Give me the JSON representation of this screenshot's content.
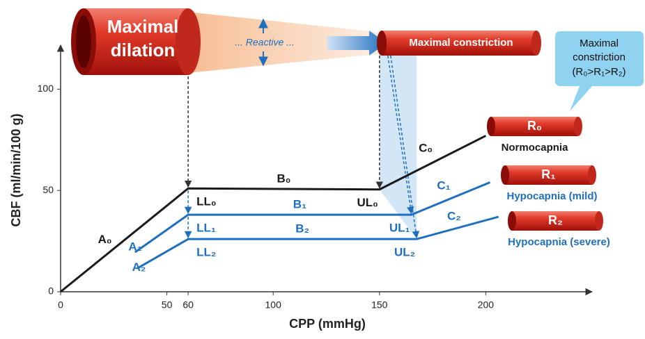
{
  "chart_data": {
    "type": "line",
    "x_label": "CPP (mmHg)",
    "y_label": "CBF (ml/min/100 g)",
    "xlim": [
      0,
      250
    ],
    "ylim": [
      0,
      120
    ],
    "xticks": [
      0,
      50,
      60,
      100,
      150,
      200
    ],
    "yticks": [
      0,
      50,
      100
    ],
    "series": [
      {
        "name": "Normocapnia",
        "tag": "R₀",
        "color": "#1a1a1a",
        "x": [
          0,
          60,
          150,
          200
        ],
        "values": [
          0,
          51,
          50.5,
          77
        ],
        "segment_labels": [
          "A₀",
          "B₀",
          "C₀"
        ],
        "limit_labels": [
          "LL₀",
          "UL₀"
        ]
      },
      {
        "name": "Hypocapnia (mild)",
        "tag": "R₁",
        "color": "#1f6fbf",
        "x": [
          35,
          60,
          165,
          202
        ],
        "values": [
          19.5,
          38,
          38,
          54
        ],
        "segment_labels": [
          "A₁",
          "B₁",
          "C₁"
        ],
        "limit_labels": [
          "LL₁",
          "UL₁"
        ]
      },
      {
        "name": "Hypocapnia (severe)",
        "tag": "R₂",
        "color": "#1f6fbf",
        "x": [
          36,
          60,
          167.5,
          206
        ],
        "values": [
          11.5,
          26,
          26,
          37
        ],
        "segment_labels": [
          "A₂",
          "B₂",
          "C₂"
        ],
        "limit_labels": [
          "LL₂",
          "UL₂"
        ]
      }
    ],
    "banner": {
      "left": [
        "Maximal",
        "dilation"
      ],
      "middle": "... Reactive ...",
      "right": "Maximal constriction"
    },
    "callout": [
      "Maximal",
      "constriction",
      "(R₀>R₁>R₂)"
    ]
  }
}
